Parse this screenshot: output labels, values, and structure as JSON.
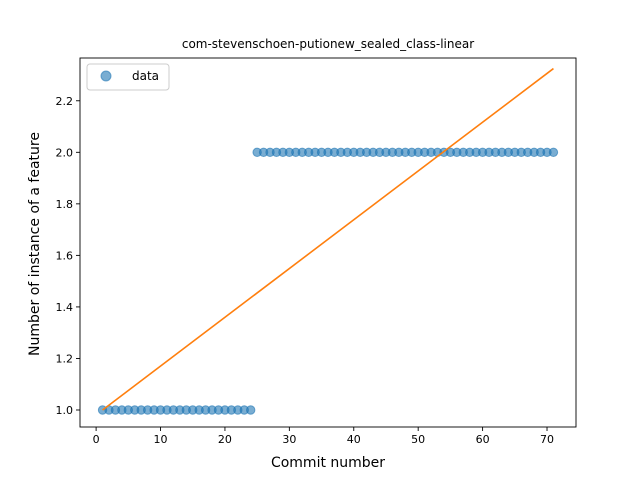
{
  "chart_data": {
    "type": "scatter",
    "title": "com-stevenschoen-putionew_sealed_class-linear",
    "xlabel": "Commit number",
    "ylabel": "Number of instance of a feature",
    "xlim": [
      -2.5,
      74.5
    ],
    "ylim": [
      0.934,
      2.366
    ],
    "xticks": [
      0,
      10,
      20,
      30,
      40,
      50,
      60,
      70
    ],
    "yticks": [
      1.0,
      1.2,
      1.4,
      1.6,
      1.8,
      2.0,
      2.2
    ],
    "ytick_labels": [
      "1.0",
      "1.2",
      "1.4",
      "1.6",
      "1.8",
      "2.0",
      "2.2"
    ],
    "grid": false,
    "legend_position": "top-left",
    "series": [
      {
        "name": "data",
        "kind": "scatter",
        "color": "#1f77b4",
        "x": [
          1,
          2,
          3,
          4,
          5,
          6,
          7,
          8,
          9,
          10,
          11,
          12,
          13,
          14,
          15,
          16,
          17,
          18,
          19,
          20,
          21,
          22,
          23,
          24,
          25,
          26,
          27,
          28,
          29,
          30,
          31,
          32,
          33,
          34,
          35,
          36,
          37,
          38,
          39,
          40,
          41,
          42,
          43,
          44,
          45,
          46,
          47,
          48,
          49,
          50,
          51,
          52,
          53,
          54,
          55,
          56,
          57,
          58,
          59,
          60,
          61,
          62,
          63,
          64,
          65,
          66,
          67,
          68,
          69,
          70,
          71
        ],
        "y": [
          1,
          1,
          1,
          1,
          1,
          1,
          1,
          1,
          1,
          1,
          1,
          1,
          1,
          1,
          1,
          1,
          1,
          1,
          1,
          1,
          1,
          1,
          1,
          1,
          2,
          2,
          2,
          2,
          2,
          2,
          2,
          2,
          2,
          2,
          2,
          2,
          2,
          2,
          2,
          2,
          2,
          2,
          2,
          2,
          2,
          2,
          2,
          2,
          2,
          2,
          2,
          2,
          2,
          2,
          2,
          2,
          2,
          2,
          2,
          2,
          2,
          2,
          2,
          2,
          2,
          2,
          2,
          2,
          2,
          2,
          2
        ]
      },
      {
        "kind": "line",
        "color": "#ff7f0e",
        "x": [
          1,
          71
        ],
        "y": [
          1.0,
          2.325
        ]
      }
    ]
  }
}
